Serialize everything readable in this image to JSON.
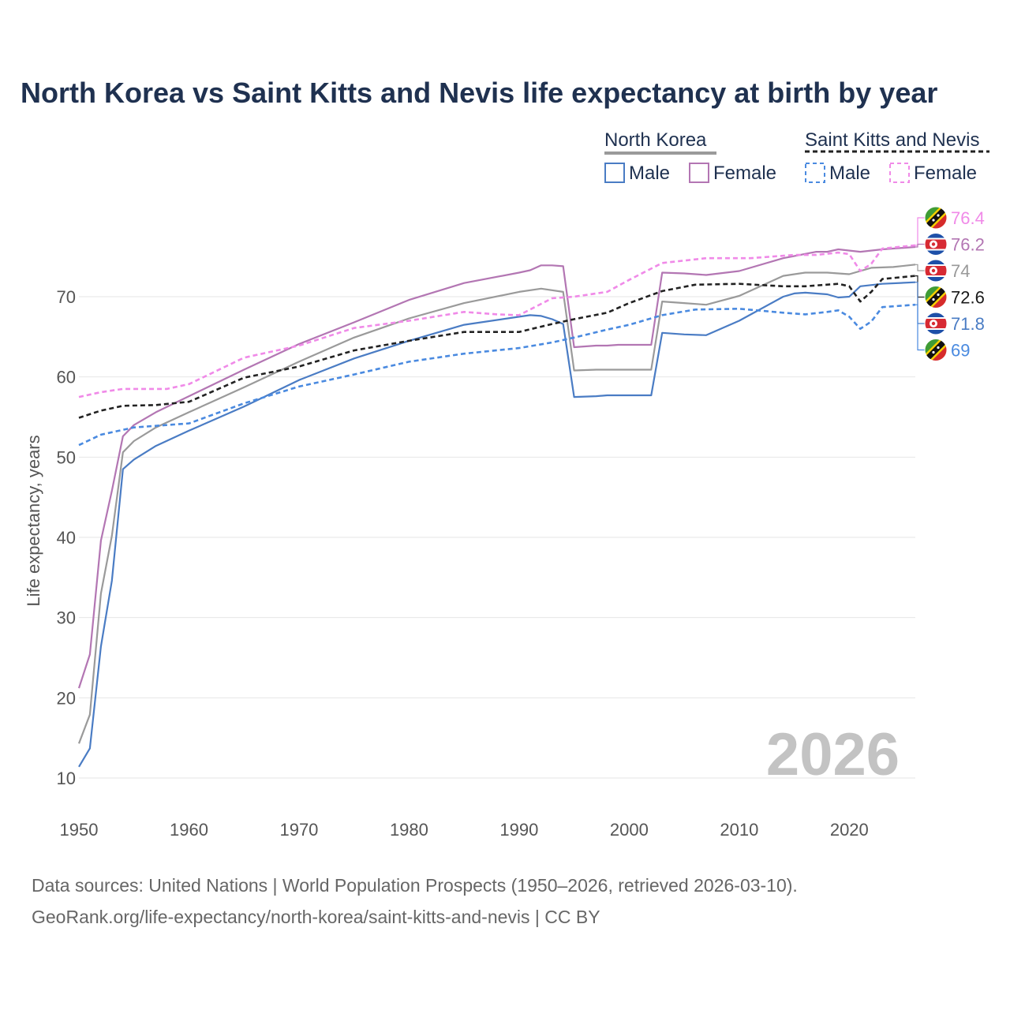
{
  "chart_data": {
    "type": "line",
    "title": "North Korea vs Saint Kitts and Nevis life expectancy at birth by year",
    "xlabel": "",
    "ylabel": "Life expectancy, years",
    "xlim": [
      1950,
      2026
    ],
    "ylim": [
      10,
      80
    ],
    "xticks": [
      1950,
      1960,
      1970,
      1980,
      1990,
      2000,
      2010,
      2020
    ],
    "yticks": [
      10,
      20,
      30,
      40,
      50,
      60,
      70
    ],
    "year_label": "2026",
    "legend": {
      "groups": [
        {
          "name": "North Korea",
          "items": [
            "Male",
            "Female"
          ]
        },
        {
          "name": "Saint Kitts and Nevis",
          "items": [
            "Male",
            "Female"
          ]
        }
      ]
    },
    "series": [
      {
        "name": "North Korea Female",
        "country": "North Korea",
        "sex": "Female",
        "color": "#b376b3",
        "dashed": false,
        "end_label": "76.2",
        "points": [
          [
            1950,
            21.2
          ],
          [
            1951,
            25.4
          ],
          [
            1952,
            39.6
          ],
          [
            1953,
            45.8
          ],
          [
            1954,
            52.6
          ],
          [
            1955,
            54.0
          ],
          [
            1957,
            55.6
          ],
          [
            1960,
            57.6
          ],
          [
            1965,
            60.9
          ],
          [
            1970,
            64.1
          ],
          [
            1975,
            66.8
          ],
          [
            1980,
            69.6
          ],
          [
            1985,
            71.7
          ],
          [
            1990,
            73.0
          ],
          [
            1991,
            73.3
          ],
          [
            1992,
            73.9
          ],
          [
            1993,
            73.9
          ],
          [
            1994,
            73.8
          ],
          [
            1995,
            63.7
          ],
          [
            1997,
            63.9
          ],
          [
            1998,
            63.9
          ],
          [
            1999,
            64.0
          ],
          [
            2000,
            64.0
          ],
          [
            2001,
            64.0
          ],
          [
            2002,
            64.0
          ],
          [
            2003,
            73.0
          ],
          [
            2005,
            72.9
          ],
          [
            2007,
            72.7
          ],
          [
            2010,
            73.2
          ],
          [
            2014,
            74.8
          ],
          [
            2017,
            75.6
          ],
          [
            2018,
            75.6
          ],
          [
            2019,
            75.9
          ],
          [
            2021,
            75.6
          ],
          [
            2023,
            75.9
          ],
          [
            2026,
            76.2
          ]
        ]
      },
      {
        "name": "North Korea Total",
        "country": "North Korea",
        "sex": "Total",
        "color": "#9a9a9a",
        "dashed": false,
        "end_label": "74",
        "points": [
          [
            1950,
            14.3
          ],
          [
            1951,
            17.9
          ],
          [
            1952,
            33.0
          ],
          [
            1953,
            40.2
          ],
          [
            1954,
            50.6
          ],
          [
            1955,
            52.0
          ],
          [
            1957,
            53.7
          ],
          [
            1960,
            55.6
          ],
          [
            1965,
            58.7
          ],
          [
            1970,
            61.9
          ],
          [
            1975,
            64.9
          ],
          [
            1980,
            67.3
          ],
          [
            1985,
            69.2
          ],
          [
            1990,
            70.6
          ],
          [
            1992,
            71.0
          ],
          [
            1994,
            70.6
          ],
          [
            1995,
            60.8
          ],
          [
            1997,
            60.9
          ],
          [
            2000,
            60.9
          ],
          [
            2002,
            60.9
          ],
          [
            2003,
            69.4
          ],
          [
            2005,
            69.2
          ],
          [
            2007,
            69.0
          ],
          [
            2010,
            70.1
          ],
          [
            2014,
            72.6
          ],
          [
            2016,
            73.0
          ],
          [
            2018,
            73.0
          ],
          [
            2020,
            72.8
          ],
          [
            2022,
            73.6
          ],
          [
            2024,
            73.7
          ],
          [
            2026,
            74.0
          ]
        ]
      },
      {
        "name": "North Korea Male",
        "country": "North Korea",
        "sex": "Male",
        "color": "#4a7cc4",
        "dashed": false,
        "end_label": "71.8",
        "points": [
          [
            1950,
            11.4
          ],
          [
            1951,
            13.7
          ],
          [
            1952,
            26.4
          ],
          [
            1953,
            34.6
          ],
          [
            1954,
            48.5
          ],
          [
            1955,
            49.7
          ],
          [
            1957,
            51.4
          ],
          [
            1960,
            53.3
          ],
          [
            1965,
            56.3
          ],
          [
            1970,
            59.6
          ],
          [
            1975,
            62.3
          ],
          [
            1980,
            64.5
          ],
          [
            1985,
            66.5
          ],
          [
            1990,
            67.5
          ],
          [
            1991,
            67.7
          ],
          [
            1992,
            67.6
          ],
          [
            1993,
            67.2
          ],
          [
            1994,
            66.6
          ],
          [
            1995,
            57.5
          ],
          [
            1997,
            57.6
          ],
          [
            1998,
            57.7
          ],
          [
            2000,
            57.7
          ],
          [
            2002,
            57.7
          ],
          [
            2003,
            65.5
          ],
          [
            2005,
            65.3
          ],
          [
            2007,
            65.2
          ],
          [
            2010,
            67.0
          ],
          [
            2014,
            70.0
          ],
          [
            2015,
            70.4
          ],
          [
            2016,
            70.5
          ],
          [
            2018,
            70.3
          ],
          [
            2019,
            69.9
          ],
          [
            2020,
            70.0
          ],
          [
            2021,
            71.3
          ],
          [
            2023,
            71.6
          ],
          [
            2026,
            71.8
          ]
        ]
      },
      {
        "name": "Saint Kitts and Nevis Female",
        "country": "Saint Kitts and Nevis",
        "sex": "Female",
        "color": "#f08ae8",
        "dashed": true,
        "end_label": "76.4",
        "points": [
          [
            1950,
            57.5
          ],
          [
            1952,
            58.1
          ],
          [
            1954,
            58.5
          ],
          [
            1958,
            58.5
          ],
          [
            1960,
            59.1
          ],
          [
            1965,
            62.4
          ],
          [
            1970,
            63.9
          ],
          [
            1975,
            66.1
          ],
          [
            1980,
            67.0
          ],
          [
            1985,
            68.1
          ],
          [
            1988,
            67.8
          ],
          [
            1990,
            67.7
          ],
          [
            1993,
            69.8
          ],
          [
            1995,
            70.0
          ],
          [
            1998,
            70.6
          ],
          [
            2000,
            72.1
          ],
          [
            2003,
            74.2
          ],
          [
            2007,
            74.8
          ],
          [
            2011,
            74.8
          ],
          [
            2015,
            75.2
          ],
          [
            2017,
            75.2
          ],
          [
            2019,
            75.5
          ],
          [
            2020,
            75.3
          ],
          [
            2021,
            73.2
          ],
          [
            2022,
            74.1
          ],
          [
            2023,
            76.0
          ],
          [
            2026,
            76.4
          ]
        ]
      },
      {
        "name": "Saint Kitts and Nevis Total",
        "country": "Saint Kitts and Nevis",
        "sex": "Total",
        "color": "#222222",
        "dashed": true,
        "end_label": "72.6",
        "points": [
          [
            1950,
            54.9
          ],
          [
            1952,
            55.8
          ],
          [
            1954,
            56.4
          ],
          [
            1957,
            56.5
          ],
          [
            1960,
            56.9
          ],
          [
            1965,
            59.9
          ],
          [
            1970,
            61.3
          ],
          [
            1975,
            63.3
          ],
          [
            1980,
            64.5
          ],
          [
            1985,
            65.6
          ],
          [
            1990,
            65.6
          ],
          [
            1993,
            66.6
          ],
          [
            1995,
            67.2
          ],
          [
            1998,
            68.0
          ],
          [
            2000,
            69.2
          ],
          [
            2003,
            70.7
          ],
          [
            2006,
            71.5
          ],
          [
            2010,
            71.6
          ],
          [
            2014,
            71.3
          ],
          [
            2016,
            71.3
          ],
          [
            2019,
            71.6
          ],
          [
            2020,
            71.3
          ],
          [
            2021,
            69.4
          ],
          [
            2022,
            70.6
          ],
          [
            2023,
            72.2
          ],
          [
            2026,
            72.6
          ]
        ]
      },
      {
        "name": "Saint Kitts and Nevis Male",
        "country": "Saint Kitts and Nevis",
        "sex": "Male",
        "color": "#4a8ae0",
        "dashed": true,
        "end_label": "69",
        "points": [
          [
            1950,
            51.5
          ],
          [
            1952,
            52.8
          ],
          [
            1955,
            53.7
          ],
          [
            1960,
            54.2
          ],
          [
            1965,
            56.7
          ],
          [
            1970,
            58.8
          ],
          [
            1975,
            60.3
          ],
          [
            1980,
            61.9
          ],
          [
            1985,
            62.9
          ],
          [
            1990,
            63.6
          ],
          [
            1993,
            64.3
          ],
          [
            1995,
            64.9
          ],
          [
            1998,
            65.9
          ],
          [
            2000,
            66.5
          ],
          [
            2003,
            67.7
          ],
          [
            2006,
            68.4
          ],
          [
            2010,
            68.5
          ],
          [
            2014,
            68.0
          ],
          [
            2016,
            67.8
          ],
          [
            2018,
            68.1
          ],
          [
            2019,
            68.3
          ],
          [
            2020,
            67.5
          ],
          [
            2021,
            66.0
          ],
          [
            2022,
            66.9
          ],
          [
            2023,
            68.7
          ],
          [
            2026,
            69.0
          ]
        ]
      }
    ]
  },
  "footer": {
    "source_line1": "Data sources: United Nations | World Population Prospects (1950–2026, retrieved 2026-03-10).",
    "source_line2": "GeoRank.org/life-expectancy/north-korea/saint-kitts-and-nevis | CC BY"
  },
  "flags": [
    "north-korea-flag-icon",
    "saint-kitts-and-nevis-flag-icon"
  ]
}
